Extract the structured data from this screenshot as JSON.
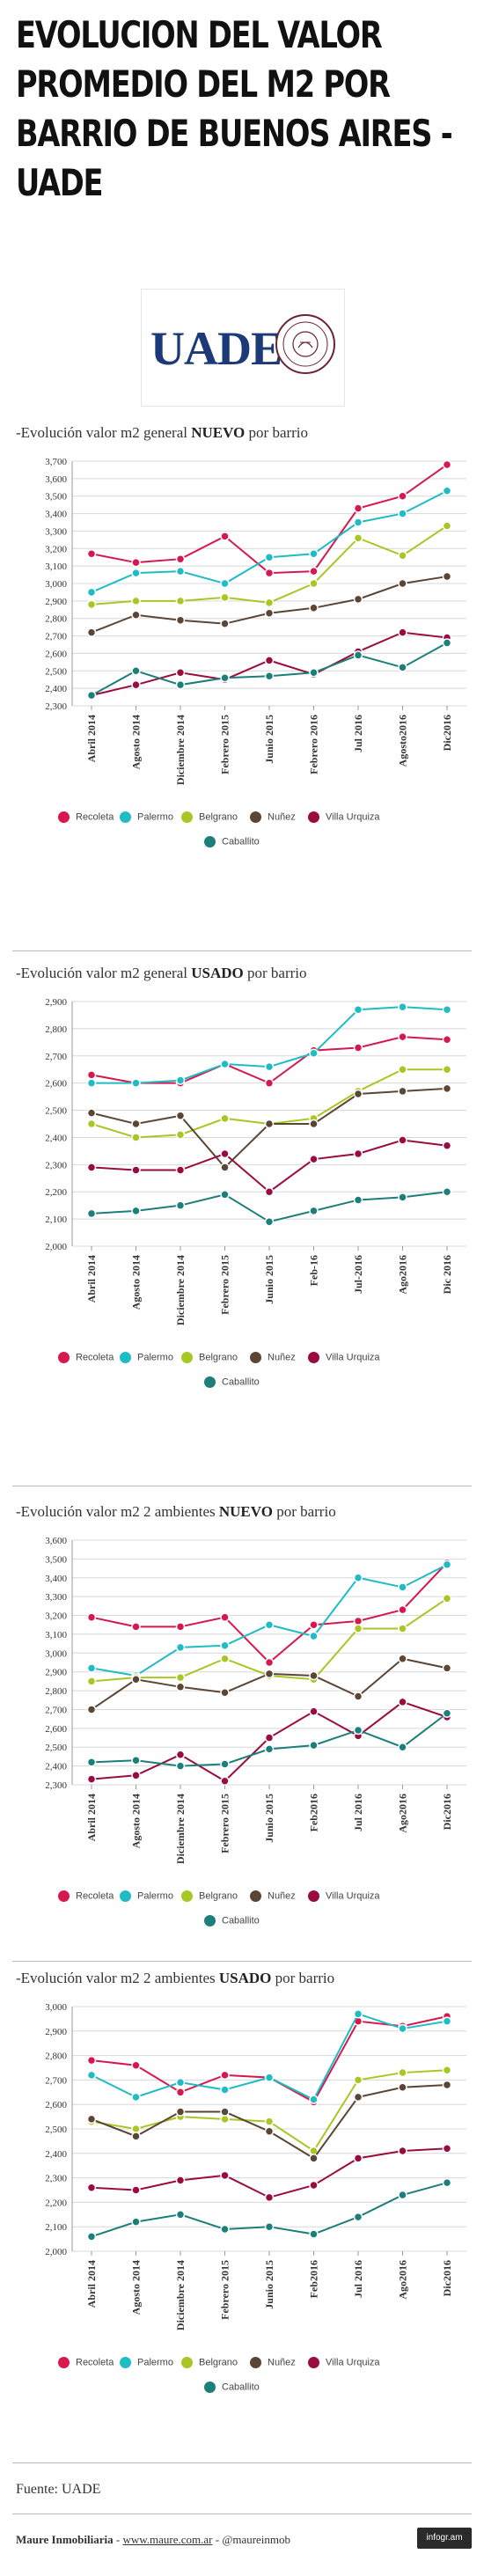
{
  "page": {
    "title": "EVOLUCION DEL VALOR PROMEDIO DEL M2 POR BARRIO DE BUENOS AIRES - UADE",
    "logo_text": "UADE",
    "source": "Fuente: UADE",
    "footer_brand": "Maure Inmobiliaria",
    "footer_sep1": " - ",
    "footer_link": "www.maure.com.ar",
    "footer_sep2": " - ",
    "footer_handle": "@maureinmob",
    "badge": "infogr.am"
  },
  "series_meta": [
    {
      "name": "Recoleta",
      "color": "#d6184f"
    },
    {
      "name": "Palermo",
      "color": "#1fbcc5"
    },
    {
      "name": "Belgrano",
      "color": "#a8c724"
    },
    {
      "name": "Nuñez",
      "color": "#5b4636"
    },
    {
      "name": "Villa Urquiza",
      "color": "#9a0c3f"
    },
    {
      "name": "Caballito",
      "color": "#1c7f7a"
    }
  ],
  "chart_data": [
    {
      "type": "line",
      "title_prefix": "-Evolución valor m2 general ",
      "title_bold": "NUEVO",
      "title_suffix": " por barrio",
      "categories": [
        "Abril 2014",
        "Agosto 2014",
        "Diciembre 2014",
        "Febrero 2015",
        "Junio 2015",
        "Febrero 2016",
        "Jul 2016",
        "Agosto2016",
        "Dic2016"
      ],
      "ylim": [
        2300,
        3700
      ],
      "yticks": [
        "2,300",
        "2,400",
        "2,500",
        "2,600",
        "2,700",
        "2,800",
        "2,900",
        "3,000",
        "3,100",
        "3,200",
        "3,300",
        "3,400",
        "3,500",
        "3,600",
        "3,700"
      ],
      "series": [
        {
          "name": "Recoleta",
          "values": [
            3170,
            3120,
            3140,
            3270,
            3060,
            3070,
            3430,
            3500,
            3680
          ]
        },
        {
          "name": "Palermo",
          "values": [
            2950,
            3060,
            3070,
            3000,
            3150,
            3170,
            3350,
            3400,
            3530
          ]
        },
        {
          "name": "Belgrano",
          "values": [
            2880,
            2900,
            2900,
            2920,
            2890,
            3000,
            3260,
            3160,
            3330
          ]
        },
        {
          "name": "Nuñez",
          "values": [
            2720,
            2820,
            2790,
            2770,
            2830,
            2860,
            2910,
            3000,
            3040
          ]
        },
        {
          "name": "Villa Urquiza",
          "values": [
            2360,
            2420,
            2490,
            2450,
            2560,
            2480,
            2610,
            2720,
            2690
          ]
        },
        {
          "name": "Caballito",
          "values": [
            2360,
            2500,
            2420,
            2460,
            2470,
            2490,
            2590,
            2520,
            2660
          ]
        }
      ]
    },
    {
      "type": "line",
      "title_prefix": "-Evolución valor m2 general ",
      "title_bold": "USADO",
      "title_suffix": " por barrio",
      "categories": [
        "Abril 2014",
        "Agosto 2014",
        "Diciembre 2014",
        "Febrero 2015",
        "Junio 2015",
        "Feb-16",
        "Jul-2016",
        "Ago2016",
        "Dic 2016"
      ],
      "ylim": [
        2000,
        2900
      ],
      "yticks": [
        "2,000",
        "2,100",
        "2,200",
        "2,300",
        "2,400",
        "2,500",
        "2,600",
        "2,700",
        "2,800",
        "2,900"
      ],
      "series": [
        {
          "name": "Recoleta",
          "values": [
            2630,
            2600,
            2600,
            2670,
            2600,
            2720,
            2730,
            2770,
            2760
          ]
        },
        {
          "name": "Palermo",
          "values": [
            2600,
            2600,
            2610,
            2670,
            2660,
            2710,
            2870,
            2880,
            2870
          ]
        },
        {
          "name": "Belgrano",
          "values": [
            2450,
            2400,
            2410,
            2470,
            2450,
            2470,
            2570,
            2650,
            2650
          ]
        },
        {
          "name": "Nuñez",
          "values": [
            2490,
            2450,
            2480,
            2290,
            2450,
            2450,
            2560,
            2570,
            2580
          ]
        },
        {
          "name": "Villa Urquiza",
          "values": [
            2290,
            2280,
            2280,
            2340,
            2200,
            2320,
            2340,
            2390,
            2370
          ]
        },
        {
          "name": "Caballito",
          "values": [
            2120,
            2130,
            2150,
            2190,
            2090,
            2130,
            2170,
            2180,
            2200
          ]
        }
      ]
    },
    {
      "type": "line",
      "title_prefix": "-Evolución valor m2  2 ambientes ",
      "title_bold": "NUEVO",
      "title_suffix": " por barrio",
      "categories": [
        "Abril 2014",
        "Agosto 2014",
        "Diciembre 2014",
        "Febrero 2015",
        "Junio 2015",
        "Feb2016",
        "Jul 2016",
        "Ago2016",
        "Dic2016"
      ],
      "ylim": [
        2300,
        3600
      ],
      "yticks": [
        "2,300",
        "2,400",
        "2,500",
        "2,600",
        "2,700",
        "2,800",
        "2,900",
        "3,000",
        "3,100",
        "3,200",
        "3,300",
        "3,400",
        "3,500",
        "3,600"
      ],
      "series": [
        {
          "name": "Recoleta",
          "values": [
            3190,
            3140,
            3140,
            3190,
            2950,
            3150,
            3170,
            3230,
            3480
          ]
        },
        {
          "name": "Palermo",
          "values": [
            2920,
            2880,
            3030,
            3040,
            3150,
            3090,
            3400,
            3350,
            3470
          ]
        },
        {
          "name": "Belgrano",
          "values": [
            2850,
            2870,
            2870,
            2970,
            2880,
            2860,
            3130,
            3130,
            3290
          ]
        },
        {
          "name": "Nuñez",
          "values": [
            2700,
            2860,
            2820,
            2790,
            2890,
            2880,
            2770,
            2970,
            2920
          ]
        },
        {
          "name": "Villa Urquiza",
          "values": [
            2330,
            2350,
            2460,
            2320,
            2550,
            2690,
            2560,
            2740,
            2660
          ]
        },
        {
          "name": "Caballito",
          "values": [
            2420,
            2430,
            2400,
            2410,
            2490,
            2510,
            2590,
            2500,
            2680
          ]
        }
      ]
    },
    {
      "type": "line",
      "title_prefix": "-Evolución valor m2  2 ambientes ",
      "title_bold": "USADO",
      "title_suffix": " por barrio",
      "categories": [
        "Abril 2014",
        "Agosto 2014",
        "Diciembre 2014",
        "Febrero 2015",
        "Junio 2015",
        "Feb2016",
        "Jul 2016",
        "Ago2016",
        "Dic2016"
      ],
      "ylim": [
        2000,
        3000
      ],
      "yticks": [
        "2,000",
        "2,100",
        "2,200",
        "2,300",
        "2,400",
        "2,500",
        "2,600",
        "2,700",
        "2,800",
        "2,900",
        "3,000"
      ],
      "series": [
        {
          "name": "Recoleta",
          "values": [
            2780,
            2760,
            2650,
            2720,
            2710,
            2610,
            2940,
            2920,
            2960
          ]
        },
        {
          "name": "Palermo",
          "values": [
            2720,
            2630,
            2690,
            2660,
            2710,
            2620,
            2970,
            2910,
            2940
          ]
        },
        {
          "name": "Belgrano",
          "values": [
            2530,
            2500,
            2550,
            2540,
            2530,
            2410,
            2700,
            2730,
            2740
          ]
        },
        {
          "name": "Nuñez",
          "values": [
            2540,
            2470,
            2570,
            2570,
            2490,
            2380,
            2630,
            2670,
            2680
          ]
        },
        {
          "name": "Villa Urquiza",
          "values": [
            2260,
            2250,
            2290,
            2310,
            2220,
            2270,
            2380,
            2410,
            2420
          ]
        },
        {
          "name": "Caballito",
          "values": [
            2060,
            2120,
            2150,
            2090,
            2100,
            2070,
            2140,
            2230,
            2280
          ]
        }
      ]
    }
  ]
}
